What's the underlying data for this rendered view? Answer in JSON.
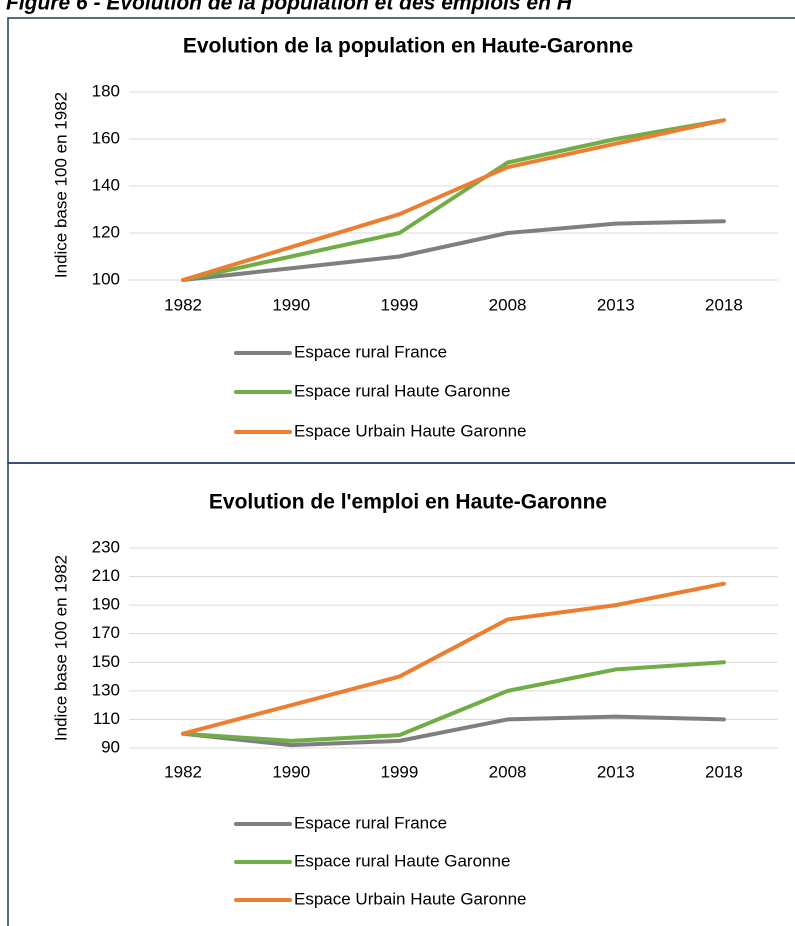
{
  "heading": "Figure 6 - Evolution de la population et des emplois en H",
  "chart_data": [
    {
      "type": "line",
      "title": "Evolution de la population en Haute-Garonne",
      "y_label": "Indice base 100 en 1982",
      "categories": [
        "1982",
        "1990",
        "1999",
        "2008",
        "2013",
        "2018"
      ],
      "series": [
        {
          "name": "Espace rural France",
          "color": "#7f7f7f",
          "values": [
            100,
            105,
            110,
            120,
            124,
            125
          ]
        },
        {
          "name": "Espace rural Haute Garonne",
          "color": "#70ad47",
          "values": [
            100,
            110,
            120,
            150,
            160,
            168
          ]
        },
        {
          "name": "Espace Urbain Haute Garonne",
          "color": "#ed7d31",
          "values": [
            100,
            114,
            128,
            148,
            158,
            168
          ]
        }
      ],
      "ylim": [
        100,
        180
      ],
      "yticks": [
        100,
        120,
        140,
        160,
        180
      ],
      "grid": true,
      "legend": "bottom"
    },
    {
      "type": "line",
      "title": "Evolution de l'emploi en Haute-Garonne",
      "y_label": "Indice base 100 en 1982",
      "categories": [
        "1982",
        "1990",
        "1999",
        "2008",
        "2013",
        "2018"
      ],
      "series": [
        {
          "name": "Espace rural France",
          "color": "#7f7f7f",
          "values": [
            100,
            92,
            95,
            110,
            112,
            110
          ]
        },
        {
          "name": "Espace rural Haute Garonne",
          "color": "#70ad47",
          "values": [
            100,
            95,
            99,
            130,
            145,
            150
          ]
        },
        {
          "name": "Espace Urbain Haute Garonne",
          "color": "#ed7d31",
          "values": [
            100,
            120,
            140,
            180,
            190,
            205
          ]
        }
      ],
      "ylim": [
        90,
        230
      ],
      "yticks": [
        90,
        110,
        130,
        150,
        170,
        190,
        210,
        230
      ],
      "grid": true,
      "legend": "bottom"
    }
  ]
}
